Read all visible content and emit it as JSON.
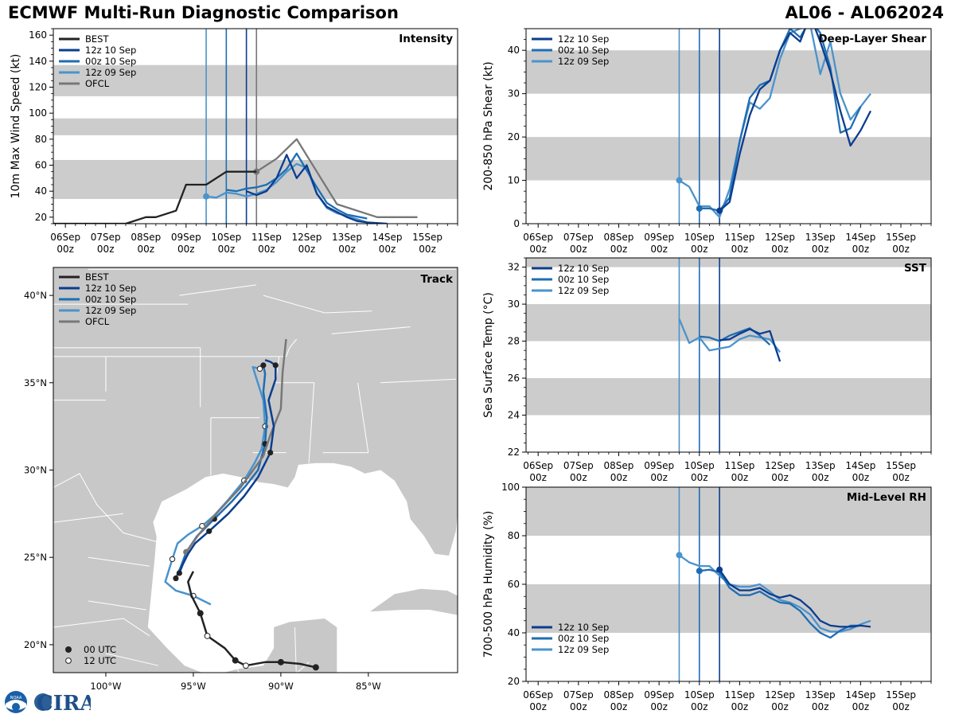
{
  "header": {
    "title": "ECMWF Multi-Run Diagnostic Comparison",
    "storm_id": "AL06 - AL062024"
  },
  "logo": {
    "text": "CIRA",
    "small_text": "NOAA"
  },
  "colors": {
    "BEST": "#222222",
    "OFCL": "#777777",
    "12z 10 Sep": "#0a3d8f",
    "00z 10 Sep": "#1f6db3",
    "12z 09 Sep": "#4a93cc",
    "band": "#cccccc",
    "land": "#c8c8c8",
    "ocean": "#ffffff",
    "border": "#ffffff"
  },
  "time_axis": {
    "ticks": [
      0,
      1,
      2,
      3,
      4,
      5,
      6,
      7,
      8,
      9
    ],
    "labels_top": [
      "06Sep",
      "07Sep",
      "08Sep",
      "09Sep",
      "10Sep",
      "11Sep",
      "12Sep",
      "13Sep",
      "14Sep",
      "15Sep"
    ],
    "labels_bottom": [
      "00z",
      "00z",
      "00z",
      "00z",
      "00z",
      "00z",
      "00z",
      "00z",
      "00z",
      "00z"
    ],
    "range_days": [
      -0.3,
      9.75
    ],
    "init_lines": [
      {
        "name": "12z 09 Sep",
        "day": 3.5
      },
      {
        "name": "00z 10 Sep",
        "day": 4.0
      },
      {
        "name": "12z 10 Sep",
        "day": 4.5
      }
    ],
    "ofcl_init_day": 4.75
  },
  "chart_data": [
    {
      "id": "intensity",
      "type": "line",
      "title": "Intensity",
      "ylabel": "10m Max Wind Speed (kt)",
      "ylim": [
        15,
        165
      ],
      "yticks": [
        20,
        40,
        60,
        80,
        100,
        120,
        140,
        160
      ],
      "bands": [
        [
          34,
          64
        ],
        [
          83,
          96
        ],
        [
          113,
          137
        ]
      ],
      "legend": [
        "BEST",
        "12z 10 Sep",
        "00z 10 Sep",
        "12z 09 Sep",
        "OFCL"
      ],
      "series": [
        {
          "name": "BEST",
          "x": [
            -0.5,
            0.5,
            0.75,
            1.0,
            1.5,
            2.0,
            2.25,
            2.75,
            3.0,
            3.5,
            4.0,
            4.75
          ],
          "y": [
            15,
            15,
            15,
            15,
            15,
            20,
            20,
            25,
            45,
            45,
            55,
            55
          ]
        },
        {
          "name": "OFCL",
          "x": [
            4.75,
            5.25,
            5.75,
            6.25,
            6.75,
            7.75,
            8.75
          ],
          "y": [
            55,
            65,
            80,
            55,
            30,
            20,
            20
          ],
          "marker_index": 0
        },
        {
          "name": "12z 10 Sep",
          "x": [
            4.5,
            4.75,
            5.0,
            5.25,
            5.5,
            5.75,
            6.0,
            6.25,
            6.5,
            6.75,
            7.0,
            7.25,
            7.5,
            8.0
          ],
          "y": [
            40,
            37,
            40,
            50,
            68,
            50,
            60,
            38,
            28,
            24,
            20,
            17,
            16,
            15
          ]
        },
        {
          "name": "00z 10 Sep",
          "x": [
            4.0,
            4.25,
            4.5,
            4.75,
            5.0,
            5.25,
            5.5,
            5.75,
            6.0,
            6.25,
            6.5,
            6.75,
            7.0,
            7.5
          ],
          "y": [
            41,
            40,
            42,
            43,
            45,
            50,
            57,
            69,
            56,
            43,
            31,
            26,
            22,
            19
          ]
        },
        {
          "name": "12z 09 Sep",
          "x": [
            3.5,
            3.75,
            4.0,
            4.25,
            4.5,
            4.75,
            5.0,
            5.25,
            5.5,
            5.75,
            6.0,
            6.25,
            6.5,
            6.75,
            7.0,
            7.5
          ],
          "y": [
            36,
            35,
            39,
            38,
            36,
            38,
            41,
            47,
            55,
            61,
            58,
            38,
            27,
            23,
            21,
            16
          ],
          "marker_index": 0
        }
      ]
    },
    {
      "id": "shear",
      "type": "line",
      "title": "Deep-Layer Shear",
      "ylabel": "200-850 hPa Shear (kt)",
      "ylim": [
        0,
        45
      ],
      "yticks": [
        0,
        10,
        20,
        30,
        40
      ],
      "bands": [
        [
          10,
          20
        ],
        [
          30,
          40
        ]
      ],
      "legend": [
        "12z 10 Sep",
        "00z 10 Sep",
        "12z 09 Sep"
      ],
      "series": [
        {
          "name": "12z 10 Sep",
          "x": [
            4.5,
            4.75,
            5.0,
            5.25,
            5.5,
            5.75,
            6.0,
            6.25,
            6.5,
            6.75,
            7.0,
            7.25,
            7.5,
            7.75,
            8.0,
            8.25
          ],
          "y": [
            3,
            5,
            16,
            25,
            31,
            33,
            40,
            44,
            42,
            48,
            42,
            35,
            26,
            18,
            21.5,
            26
          ],
          "marker_index": 0
        },
        {
          "name": "00z 10 Sep",
          "x": [
            4.0,
            4.25,
            4.5,
            4.75,
            5.0,
            5.25,
            5.5,
            5.75,
            6.0,
            6.25,
            6.5,
            6.75,
            7.0,
            7.25,
            7.5,
            7.75,
            8.0
          ],
          "y": [
            3.5,
            3.5,
            3,
            6,
            19,
            29,
            32,
            33,
            40,
            45,
            43,
            47,
            44,
            36,
            21,
            22,
            27
          ],
          "marker_index": 0
        },
        {
          "name": "12z 09 Sep",
          "x": [
            3.5,
            3.75,
            4.0,
            4.25,
            4.5,
            4.75,
            5.0,
            5.25,
            5.5,
            5.75,
            6.0,
            6.25,
            6.5,
            6.75,
            7.0,
            7.25,
            7.5,
            7.75,
            8.0,
            8.25
          ],
          "y": [
            10,
            8.5,
            4,
            4,
            1.5,
            8,
            19,
            28,
            26.5,
            29,
            38,
            44,
            45,
            46,
            34.5,
            42,
            30,
            24,
            27,
            30
          ],
          "marker_index": 0
        }
      ]
    },
    {
      "id": "sst",
      "type": "line",
      "title": "SST",
      "ylabel": "Sea Surface Temp (°C)",
      "ylim": [
        22,
        32.5
      ],
      "yticks": [
        22,
        24,
        26,
        28,
        30,
        32
      ],
      "bands": [
        [
          24,
          26
        ],
        [
          28,
          30
        ],
        [
          32,
          34
        ]
      ],
      "legend": [
        "12z 10 Sep",
        "00z 10 Sep",
        "12z 09 Sep"
      ],
      "series": [
        {
          "name": "12z 10 Sep",
          "x": [
            4.5,
            4.75,
            5.0,
            5.25,
            5.5,
            5.75,
            6.0
          ],
          "y": [
            28.05,
            28.1,
            28.4,
            28.65,
            28.4,
            28.55,
            26.9
          ]
        },
        {
          "name": "00z 10 Sep",
          "x": [
            4.0,
            4.25,
            4.5,
            4.75,
            5.0,
            5.25,
            5.5,
            5.75
          ],
          "y": [
            28.25,
            28.2,
            28.0,
            28.3,
            28.5,
            28.7,
            28.3,
            27.8
          ]
        },
        {
          "name": "12z 09 Sep",
          "x": [
            3.5,
            3.75,
            4.0,
            4.25,
            4.5,
            4.75,
            5.0,
            5.25,
            5.5,
            5.75,
            6.0
          ],
          "y": [
            29.2,
            27.9,
            28.2,
            27.5,
            27.6,
            27.7,
            28.1,
            28.3,
            28.2,
            28.1,
            27.4
          ]
        }
      ]
    },
    {
      "id": "rh",
      "type": "line",
      "title": "Mid-Level RH",
      "ylabel": "700-500 hPa Humidity (%)",
      "ylim": [
        20,
        100
      ],
      "yticks": [
        20,
        40,
        60,
        80,
        100
      ],
      "bands": [
        [
          40,
          60
        ],
        [
          80,
          100
        ]
      ],
      "legend": [
        "12z 10 Sep",
        "00z 10 Sep",
        "12z 09 Sep"
      ],
      "legend_loc": "lower-left",
      "series": [
        {
          "name": "12z 10 Sep",
          "x": [
            4.5,
            4.75,
            5.0,
            5.25,
            5.5,
            5.75,
            6.0,
            6.25,
            6.5,
            6.75,
            7.0,
            7.25,
            7.5,
            7.75,
            8.0,
            8.25
          ],
          "y": [
            66,
            60,
            57.5,
            57.5,
            58.5,
            56,
            54.5,
            55.5,
            53.5,
            50,
            45,
            43,
            42.5,
            42.5,
            43,
            42.5
          ],
          "marker_index": 0
        },
        {
          "name": "00z 10 Sep",
          "x": [
            4.0,
            4.25,
            4.5,
            4.75,
            5.0,
            5.25,
            5.5,
            5.75,
            6.0,
            6.25,
            6.5,
            6.75,
            7.0,
            7.25,
            7.5,
            7.75,
            8.0
          ],
          "y": [
            65.5,
            66,
            65,
            58.5,
            55.5,
            55.5,
            57,
            54.5,
            52.5,
            52,
            49,
            44,
            40,
            38,
            41,
            43,
            43
          ],
          "marker_index": 0
        },
        {
          "name": "12z 09 Sep",
          "x": [
            3.5,
            3.75,
            4.0,
            4.25,
            4.5,
            4.75,
            5.0,
            5.25,
            5.5,
            5.75,
            6.0,
            6.25,
            6.5,
            6.75,
            7.0,
            7.25,
            7.5,
            7.75,
            8.0,
            8.25
          ],
          "y": [
            72,
            69,
            67.5,
            67.5,
            63.5,
            60,
            59,
            59,
            60,
            57,
            53.5,
            52.5,
            50.5,
            47.5,
            42,
            40.5,
            40.5,
            41.5,
            43.5,
            45
          ],
          "marker_index": 0
        }
      ]
    },
    {
      "id": "track",
      "type": "scatter",
      "title": "Track",
      "xlim": [
        -103,
        -79.9
      ],
      "ylim": [
        18.4,
        41.6
      ],
      "xticks": [
        -100,
        -95,
        -90,
        -85
      ],
      "xtick_labels": [
        "100°W",
        "95°W",
        "90°W",
        "85°W"
      ],
      "yticks": [
        20,
        25,
        30,
        35,
        40
      ],
      "ytick_labels": [
        "20°N",
        "25°N",
        "30°N",
        "35°N",
        "40°N"
      ],
      "legend": [
        "BEST",
        "12z 10 Sep",
        "00z 10 Sep",
        "12z 09 Sep",
        "OFCL"
      ],
      "marker_legend": [
        "00 UTC",
        "12 UTC"
      ],
      "series": [
        {
          "name": "BEST",
          "lon": [
            -88.0,
            -88.9,
            -90.0,
            -90.9,
            -92.0,
            -92.6,
            -93.2,
            -94.2,
            -94.6,
            -95.1,
            -95.3,
            -95.0
          ],
          "lat": [
            18.7,
            18.9,
            19.0,
            19.0,
            18.8,
            19.1,
            19.8,
            20.5,
            21.8,
            22.8,
            23.6,
            24.2
          ]
        },
        {
          "name": "BEST_00",
          "lon": [
            -88.0,
            -90.0,
            -92.6,
            -94.6
          ],
          "lat": [
            18.7,
            19.0,
            19.1,
            21.8
          ],
          "marker": "filled"
        },
        {
          "name": "BEST_12",
          "lon": [
            -92.0,
            -94.2
          ],
          "lat": [
            18.8,
            20.5
          ],
          "marker": "open"
        },
        {
          "name": "OFCL",
          "lon": [
            -95.4,
            -94.7,
            -93.6,
            -92.3,
            -91.0,
            -90.6,
            -90.0,
            -89.9,
            -89.7
          ],
          "lat": [
            25.3,
            26.3,
            27.6,
            29.0,
            30.8,
            32.0,
            33.5,
            35.6,
            37.5
          ],
          "marker_index": 0
        },
        {
          "name": "12z 10 Sep",
          "lon": [
            -95.8,
            -95.6,
            -95.3,
            -94.9,
            -94.1,
            -93.0,
            -92.1,
            -91.3,
            -90.6,
            -90.4,
            -90.7,
            -90.3,
            -90.3,
            -90.6,
            -90.9
          ],
          "lat": [
            24.1,
            24.6,
            25.2,
            25.8,
            26.5,
            27.5,
            28.5,
            29.6,
            31.0,
            32.5,
            34.0,
            35.2,
            36.0,
            36.2,
            36.3
          ],
          "marker": "filled"
        },
        {
          "name": "00z 10 Sep",
          "lon": [
            -96.0,
            -95.7,
            -95.4,
            -94.8,
            -93.8,
            -92.8,
            -92.0,
            -91.3,
            -90.9,
            -90.8,
            -91.0,
            -90.9,
            -91.0
          ],
          "lat": [
            23.8,
            24.5,
            25.3,
            26.2,
            27.2,
            28.2,
            29.1,
            30.0,
            31.5,
            33.0,
            34.5,
            35.5,
            36.0
          ],
          "marker": "filled"
        },
        {
          "name": "12z 09 Sep",
          "lon": [
            -94.0,
            -95.0,
            -96.0,
            -96.6,
            -96.2,
            -95.9,
            -95.3,
            -94.5,
            -93.8,
            -93.0,
            -92.1,
            -91.5,
            -91.1,
            -90.9,
            -91.0,
            -91.6,
            -91.2
          ],
          "lat": [
            22.3,
            22.8,
            23.1,
            23.6,
            24.9,
            25.8,
            26.3,
            26.8,
            27.4,
            28.3,
            29.4,
            30.4,
            31.2,
            32.5,
            34.0,
            35.9,
            35.8
          ],
          "marker": "open"
        }
      ]
    }
  ]
}
